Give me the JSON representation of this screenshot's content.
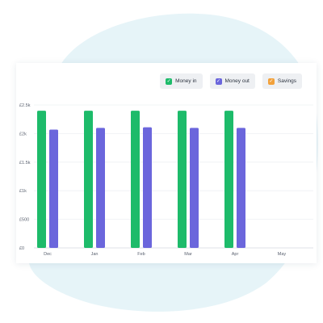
{
  "colors": {
    "money_in": "#1dbb6a",
    "money_out": "#6b66dc",
    "savings": "#f2a13b",
    "background_blob": "#e6f4f8"
  },
  "legend": [
    {
      "label": "Money in",
      "icon": "check-icon",
      "checked": true
    },
    {
      "label": "Money out",
      "icon": "check-icon",
      "checked": true
    },
    {
      "label": "Savings",
      "icon": "check-icon",
      "checked": true
    }
  ],
  "chart_data": {
    "type": "bar",
    "categories": [
      "Dec",
      "Jan",
      "Feb",
      "Mar",
      "Apr",
      "May"
    ],
    "series": [
      {
        "name": "Money in",
        "values": [
          2400,
          2400,
          2400,
          2400,
          2400,
          null
        ]
      },
      {
        "name": "Money out",
        "values": [
          2070,
          2100,
          2110,
          2100,
          2100,
          null
        ]
      }
    ],
    "y_ticks": [
      "£0",
      "£500",
      "£1k",
      "£1.5k",
      "£2k",
      "£2.5k"
    ],
    "ylim": [
      0,
      2500
    ],
    "grid": true,
    "legend_position": "top-right"
  }
}
